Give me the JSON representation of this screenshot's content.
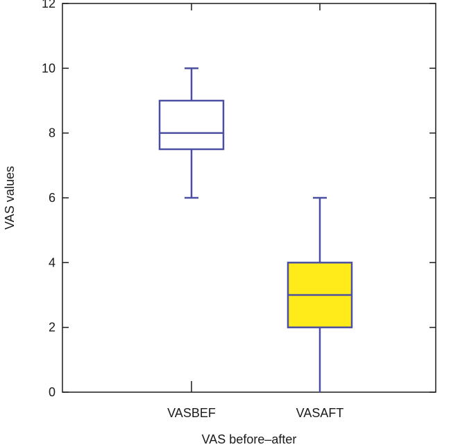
{
  "chart_data": {
    "type": "box",
    "xlabel": "VAS before–after",
    "ylabel": "VAS values",
    "ylim": [
      0,
      12
    ],
    "yticks": [
      0,
      2,
      4,
      6,
      8,
      10,
      12
    ],
    "categories": [
      "VASBEF",
      "VASAFT"
    ],
    "boxes": [
      {
        "category": "VASBEF",
        "min": 6,
        "q1": 7.5,
        "median": 8,
        "q3": 9,
        "max": 10,
        "fill": "#ffffff"
      },
      {
        "category": "VASAFT",
        "min": 0,
        "q1": 2,
        "median": 3,
        "q3": 4,
        "max": 6,
        "fill": "#ffeb1a"
      }
    ],
    "grid": false,
    "colors": {
      "box_stroke": "#4a4fa3",
      "axis": "#1a1a1a"
    }
  }
}
